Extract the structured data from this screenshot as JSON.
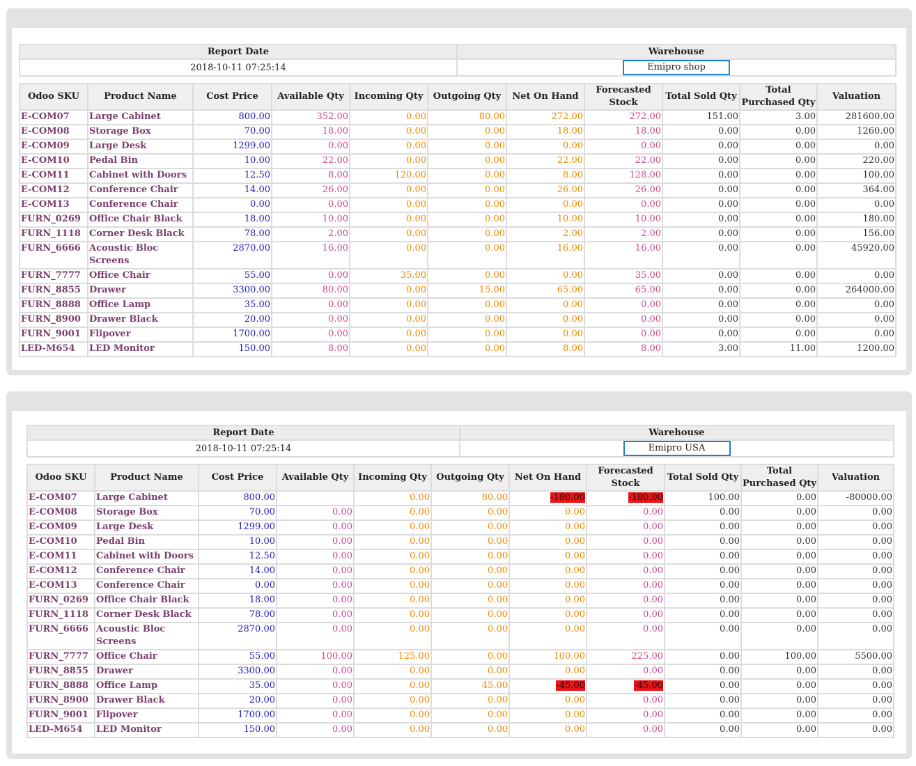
{
  "columns": [
    "Odoo SKU",
    "Product Name",
    "Cost Price",
    "Available Qty",
    "Incoming Qty",
    "Outgoing Qty",
    "Net On Hand",
    "Forecasted Stock",
    "Total Sold Qty",
    "Total Purchased Qty",
    "Valuation"
  ],
  "reports": [
    {
      "report_date_label": "Report Date",
      "report_date": "2018-10-11 07:25:14",
      "warehouse_label": "Warehouse",
      "warehouse": "Emipro shop",
      "rows": [
        {
          "sku": "E-COM07",
          "name": "Large Cabinet",
          "cost": "800.00",
          "avail": "352.00",
          "inc": "0.00",
          "out": "80.00",
          "net": "272.00",
          "fore": "272.00",
          "sold": "151.00",
          "purch": "3.00",
          "val": "281600.00"
        },
        {
          "sku": "E-COM08",
          "name": "Storage Box",
          "cost": "70.00",
          "avail": "18.00",
          "inc": "0.00",
          "out": "0.00",
          "net": "18.00",
          "fore": "18.00",
          "sold": "0.00",
          "purch": "0.00",
          "val": "1260.00"
        },
        {
          "sku": "E-COM09",
          "name": "Large Desk",
          "cost": "1299.00",
          "avail": "0.00",
          "inc": "0.00",
          "out": "0.00",
          "net": "0.00",
          "fore": "0.00",
          "sold": "0.00",
          "purch": "0.00",
          "val": "0.00"
        },
        {
          "sku": "E-COM10",
          "name": "Pedal Bin",
          "cost": "10.00",
          "avail": "22.00",
          "inc": "0.00",
          "out": "0.00",
          "net": "22.00",
          "fore": "22.00",
          "sold": "0.00",
          "purch": "0.00",
          "val": "220.00"
        },
        {
          "sku": "E-COM11",
          "name": "Cabinet with Doors",
          "cost": "12.50",
          "avail": "8.00",
          "inc": "120.00",
          "out": "0.00",
          "net": "8.00",
          "fore": "128.00",
          "sold": "0.00",
          "purch": "0.00",
          "val": "100.00"
        },
        {
          "sku": "E-COM12",
          "name": "Conference Chair",
          "cost": "14.00",
          "avail": "26.00",
          "inc": "0.00",
          "out": "0.00",
          "net": "26.00",
          "fore": "26.00",
          "sold": "0.00",
          "purch": "0.00",
          "val": "364.00"
        },
        {
          "sku": "E-COM13",
          "name": "Conference Chair",
          "cost": "0.00",
          "avail": "0.00",
          "inc": "0.00",
          "out": "0.00",
          "net": "0.00",
          "fore": "0.00",
          "sold": "0.00",
          "purch": "0.00",
          "val": "0.00"
        },
        {
          "sku": "FURN_0269",
          "name": "Office Chair Black",
          "cost": "18.00",
          "avail": "10.00",
          "inc": "0.00",
          "out": "0.00",
          "net": "10.00",
          "fore": "10.00",
          "sold": "0.00",
          "purch": "0.00",
          "val": "180.00"
        },
        {
          "sku": "FURN_1118",
          "name": "Corner Desk Black",
          "cost": "78.00",
          "avail": "2.00",
          "inc": "0.00",
          "out": "0.00",
          "net": "2.00",
          "fore": "2.00",
          "sold": "0.00",
          "purch": "0.00",
          "val": "156.00"
        },
        {
          "sku": "FURN_6666",
          "name": "Acoustic Bloc Screens",
          "cost": "2870.00",
          "avail": "16.00",
          "inc": "0.00",
          "out": "0.00",
          "net": "16.00",
          "fore": "16.00",
          "sold": "0.00",
          "purch": "0.00",
          "val": "45920.00"
        },
        {
          "sku": "FURN_7777",
          "name": "Office Chair",
          "cost": "55.00",
          "avail": "0.00",
          "inc": "35.00",
          "out": "0.00",
          "net": "0.00",
          "fore": "35.00",
          "sold": "0.00",
          "purch": "0.00",
          "val": "0.00"
        },
        {
          "sku": "FURN_8855",
          "name": "Drawer",
          "cost": "3300.00",
          "avail": "80.00",
          "inc": "0.00",
          "out": "15.00",
          "net": "65.00",
          "fore": "65.00",
          "sold": "0.00",
          "purch": "0.00",
          "val": "264000.00"
        },
        {
          "sku": "FURN_8888",
          "name": "Office Lamp",
          "cost": "35.00",
          "avail": "0.00",
          "inc": "0.00",
          "out": "0.00",
          "net": "0.00",
          "fore": "0.00",
          "sold": "0.00",
          "purch": "0.00",
          "val": "0.00"
        },
        {
          "sku": "FURN_8900",
          "name": "Drawer Black",
          "cost": "20.00",
          "avail": "0.00",
          "inc": "0.00",
          "out": "0.00",
          "net": "0.00",
          "fore": "0.00",
          "sold": "0.00",
          "purch": "0.00",
          "val": "0.00"
        },
        {
          "sku": "FURN_9001",
          "name": "Flipover",
          "cost": "1700.00",
          "avail": "0.00",
          "inc": "0.00",
          "out": "0.00",
          "net": "0.00",
          "fore": "0.00",
          "sold": "0.00",
          "purch": "0.00",
          "val": "0.00"
        },
        {
          "sku": "LED-M654",
          "name": "LED Monitor",
          "cost": "150.00",
          "avail": "8.00",
          "inc": "0.00",
          "out": "0.00",
          "net": "8.00",
          "fore": "8.00",
          "sold": "3.00",
          "purch": "11.00",
          "val": "1200.00"
        }
      ]
    },
    {
      "report_date_label": "Report Date",
      "report_date": "2018-10-11 07:25:14",
      "warehouse_label": "Warehouse",
      "warehouse": "Emipro USA",
      "rows": [
        {
          "sku": "E-COM07",
          "name": "Large Cabinet",
          "cost": "800.00",
          "avail": "",
          "inc": "0.00",
          "out": "80.00",
          "net": "-180.00",
          "fore": "-180.00",
          "sold": "100.00",
          "purch": "0.00",
          "val": "-80000.00"
        },
        {
          "sku": "E-COM08",
          "name": "Storage Box",
          "cost": "70.00",
          "avail": "0.00",
          "inc": "0.00",
          "out": "0.00",
          "net": "0.00",
          "fore": "0.00",
          "sold": "0.00",
          "purch": "0.00",
          "val": "0.00"
        },
        {
          "sku": "E-COM09",
          "name": "Large Desk",
          "cost": "1299.00",
          "avail": "0.00",
          "inc": "0.00",
          "out": "0.00",
          "net": "0.00",
          "fore": "0.00",
          "sold": "0.00",
          "purch": "0.00",
          "val": "0.00"
        },
        {
          "sku": "E-COM10",
          "name": "Pedal Bin",
          "cost": "10.00",
          "avail": "0.00",
          "inc": "0.00",
          "out": "0.00",
          "net": "0.00",
          "fore": "0.00",
          "sold": "0.00",
          "purch": "0.00",
          "val": "0.00"
        },
        {
          "sku": "E-COM11",
          "name": "Cabinet with Doors",
          "cost": "12.50",
          "avail": "0.00",
          "inc": "0.00",
          "out": "0.00",
          "net": "0.00",
          "fore": "0.00",
          "sold": "0.00",
          "purch": "0.00",
          "val": "0.00"
        },
        {
          "sku": "E-COM12",
          "name": "Conference Chair",
          "cost": "14.00",
          "avail": "0.00",
          "inc": "0.00",
          "out": "0.00",
          "net": "0.00",
          "fore": "0.00",
          "sold": "0.00",
          "purch": "0.00",
          "val": "0.00"
        },
        {
          "sku": "E-COM13",
          "name": "Conference Chair",
          "cost": "0.00",
          "avail": "0.00",
          "inc": "0.00",
          "out": "0.00",
          "net": "0.00",
          "fore": "0.00",
          "sold": "0.00",
          "purch": "0.00",
          "val": "0.00"
        },
        {
          "sku": "FURN_0269",
          "name": "Office Chair Black",
          "cost": "18.00",
          "avail": "0.00",
          "inc": "0.00",
          "out": "0.00",
          "net": "0.00",
          "fore": "0.00",
          "sold": "0.00",
          "purch": "0.00",
          "val": "0.00"
        },
        {
          "sku": "FURN_1118",
          "name": "Corner Desk Black",
          "cost": "78.00",
          "avail": "0.00",
          "inc": "0.00",
          "out": "0.00",
          "net": "0.00",
          "fore": "0.00",
          "sold": "0.00",
          "purch": "0.00",
          "val": "0.00"
        },
        {
          "sku": "FURN_6666",
          "name": "Acoustic Bloc Screens",
          "cost": "2870.00",
          "avail": "0.00",
          "inc": "0.00",
          "out": "0.00",
          "net": "0.00",
          "fore": "0.00",
          "sold": "0.00",
          "purch": "0.00",
          "val": "0.00"
        },
        {
          "sku": "FURN_7777",
          "name": "Office Chair",
          "cost": "55.00",
          "avail": "100.00",
          "inc": "125.00",
          "out": "0.00",
          "net": "100.00",
          "fore": "225.00",
          "sold": "0.00",
          "purch": "100.00",
          "val": "5500.00"
        },
        {
          "sku": "FURN_8855",
          "name": "Drawer",
          "cost": "3300.00",
          "avail": "0.00",
          "inc": "0.00",
          "out": "0.00",
          "net": "0.00",
          "fore": "0.00",
          "sold": "0.00",
          "purch": "0.00",
          "val": "0.00"
        },
        {
          "sku": "FURN_8888",
          "name": "Office Lamp",
          "cost": "35.00",
          "avail": "0.00",
          "inc": "0.00",
          "out": "45.00",
          "net": "-45.00",
          "fore": "-45.00",
          "sold": "0.00",
          "purch": "0.00",
          "val": "0.00"
        },
        {
          "sku": "FURN_8900",
          "name": "Drawer Black",
          "cost": "20.00",
          "avail": "0.00",
          "inc": "0.00",
          "out": "0.00",
          "net": "0.00",
          "fore": "0.00",
          "sold": "0.00",
          "purch": "0.00",
          "val": "0.00"
        },
        {
          "sku": "FURN_9001",
          "name": "Flipover",
          "cost": "1700.00",
          "avail": "0.00",
          "inc": "0.00",
          "out": "0.00",
          "net": "0.00",
          "fore": "0.00",
          "sold": "0.00",
          "purch": "0.00",
          "val": "0.00"
        },
        {
          "sku": "LED-M654",
          "name": "LED Monitor",
          "cost": "150.00",
          "avail": "0.00",
          "inc": "0.00",
          "out": "0.00",
          "net": "0.00",
          "fore": "0.00",
          "sold": "0.00",
          "purch": "0.00",
          "val": "0.00"
        }
      ]
    }
  ],
  "colors": {
    "sku": "#7b3f6e",
    "cost": "#2020b8",
    "available": "#cc4a86",
    "incoming_outgoing_net": "#ee8a00",
    "negative_highlight": "#e4161a",
    "warehouse_box_border": "#1f7fd1",
    "panel_background": "#e3e3e3"
  }
}
